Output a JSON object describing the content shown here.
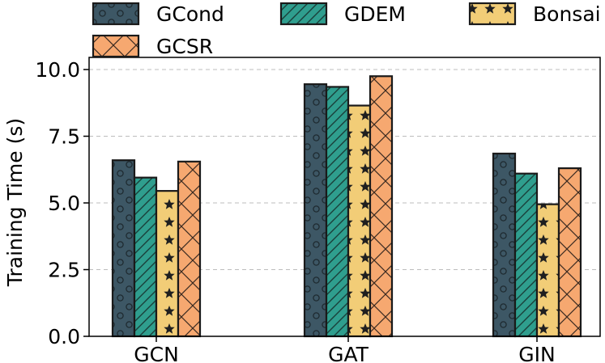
{
  "chart_data": {
    "type": "bar",
    "title": "",
    "xlabel": "",
    "ylabel": "Training Time (s)",
    "ylim": [
      0,
      10
    ],
    "yticks": [
      "0.0",
      "2.5",
      "5.0",
      "7.5",
      "10.0"
    ],
    "grid": "horizontal-dashed",
    "categories": [
      "GCN",
      "GAT",
      "GIN"
    ],
    "series": [
      {
        "name": "GCond",
        "values": [
          6.6,
          9.45,
          6.85
        ],
        "color": "#3d5765",
        "pattern": "circles"
      },
      {
        "name": "GDEM",
        "values": [
          5.95,
          9.35,
          6.1
        ],
        "color": "#2f9e8e",
        "pattern": "diagonal"
      },
      {
        "name": "Bonsai",
        "values": [
          5.45,
          8.65,
          4.95
        ],
        "color": "#f2cd77",
        "pattern": "stars"
      },
      {
        "name": "GCSR",
        "values": [
          6.55,
          9.75,
          6.3
        ],
        "color": "#f6a870",
        "pattern": "crosshatch"
      }
    ],
    "legend": "top, outside, 3 columns"
  }
}
